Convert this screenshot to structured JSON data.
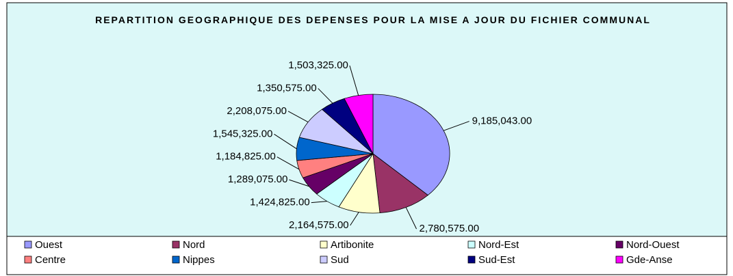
{
  "chart_data": {
    "type": "pie",
    "title": "REPARTITION GEOGRAPHIQUE DES DEPENSES POUR LA MISE A JOUR DU FICHIER COMMUNAL",
    "categories": [
      "Ouest",
      "Nord",
      "Artibonite",
      "Nord-Est",
      "Nord-Ouest",
      "Centre",
      "Nippes",
      "Sud",
      "Sud-Est",
      "Gde-Anse"
    ],
    "values": [
      9185043,
      2780575,
      2164575,
      1424825,
      1289075,
      1184825,
      1545325,
      2208075,
      1350575,
      1503325
    ],
    "value_labels": [
      "9,185,043.00",
      "2,780,575.00",
      "2,164,575.00",
      "1,424,825.00",
      "1,289,075.00",
      "1,184,825.00",
      "1,545,325.00",
      "2,208,075.00",
      "1,350,575.00",
      "1,503,325.00"
    ],
    "colors": [
      "#9999ff",
      "#993366",
      "#ffffcc",
      "#ccffff",
      "#660066",
      "#ff8080",
      "#0066cc",
      "#ccccff",
      "#000080",
      "#ff00ff"
    ],
    "legend": "bottom"
  }
}
